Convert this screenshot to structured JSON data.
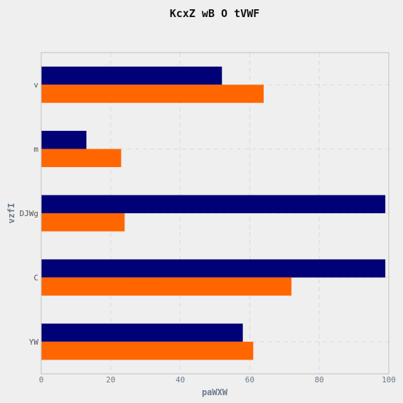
{
  "chart_data": {
    "type": "bar",
    "orientation": "horizontal",
    "title": "KcxZ wB O tVWF",
    "xlabel": "paWXW",
    "ylabel": "vzfI",
    "categories": [
      "v",
      "m",
      "DJWg",
      "C",
      "YW"
    ],
    "series": [
      {
        "color": "#000077",
        "values": [
          52,
          13,
          99,
          99,
          58
        ]
      },
      {
        "color": "#ff6600",
        "values": [
          64,
          23,
          24,
          72,
          61
        ]
      }
    ],
    "xlim": [
      0,
      100
    ],
    "xticks": [
      0,
      20,
      40,
      60,
      80,
      100
    ],
    "grid": true,
    "legend": "none"
  },
  "colors": {
    "background": "#efefef",
    "grid": "#d9d9d9",
    "axis": "#bfbfbf"
  }
}
